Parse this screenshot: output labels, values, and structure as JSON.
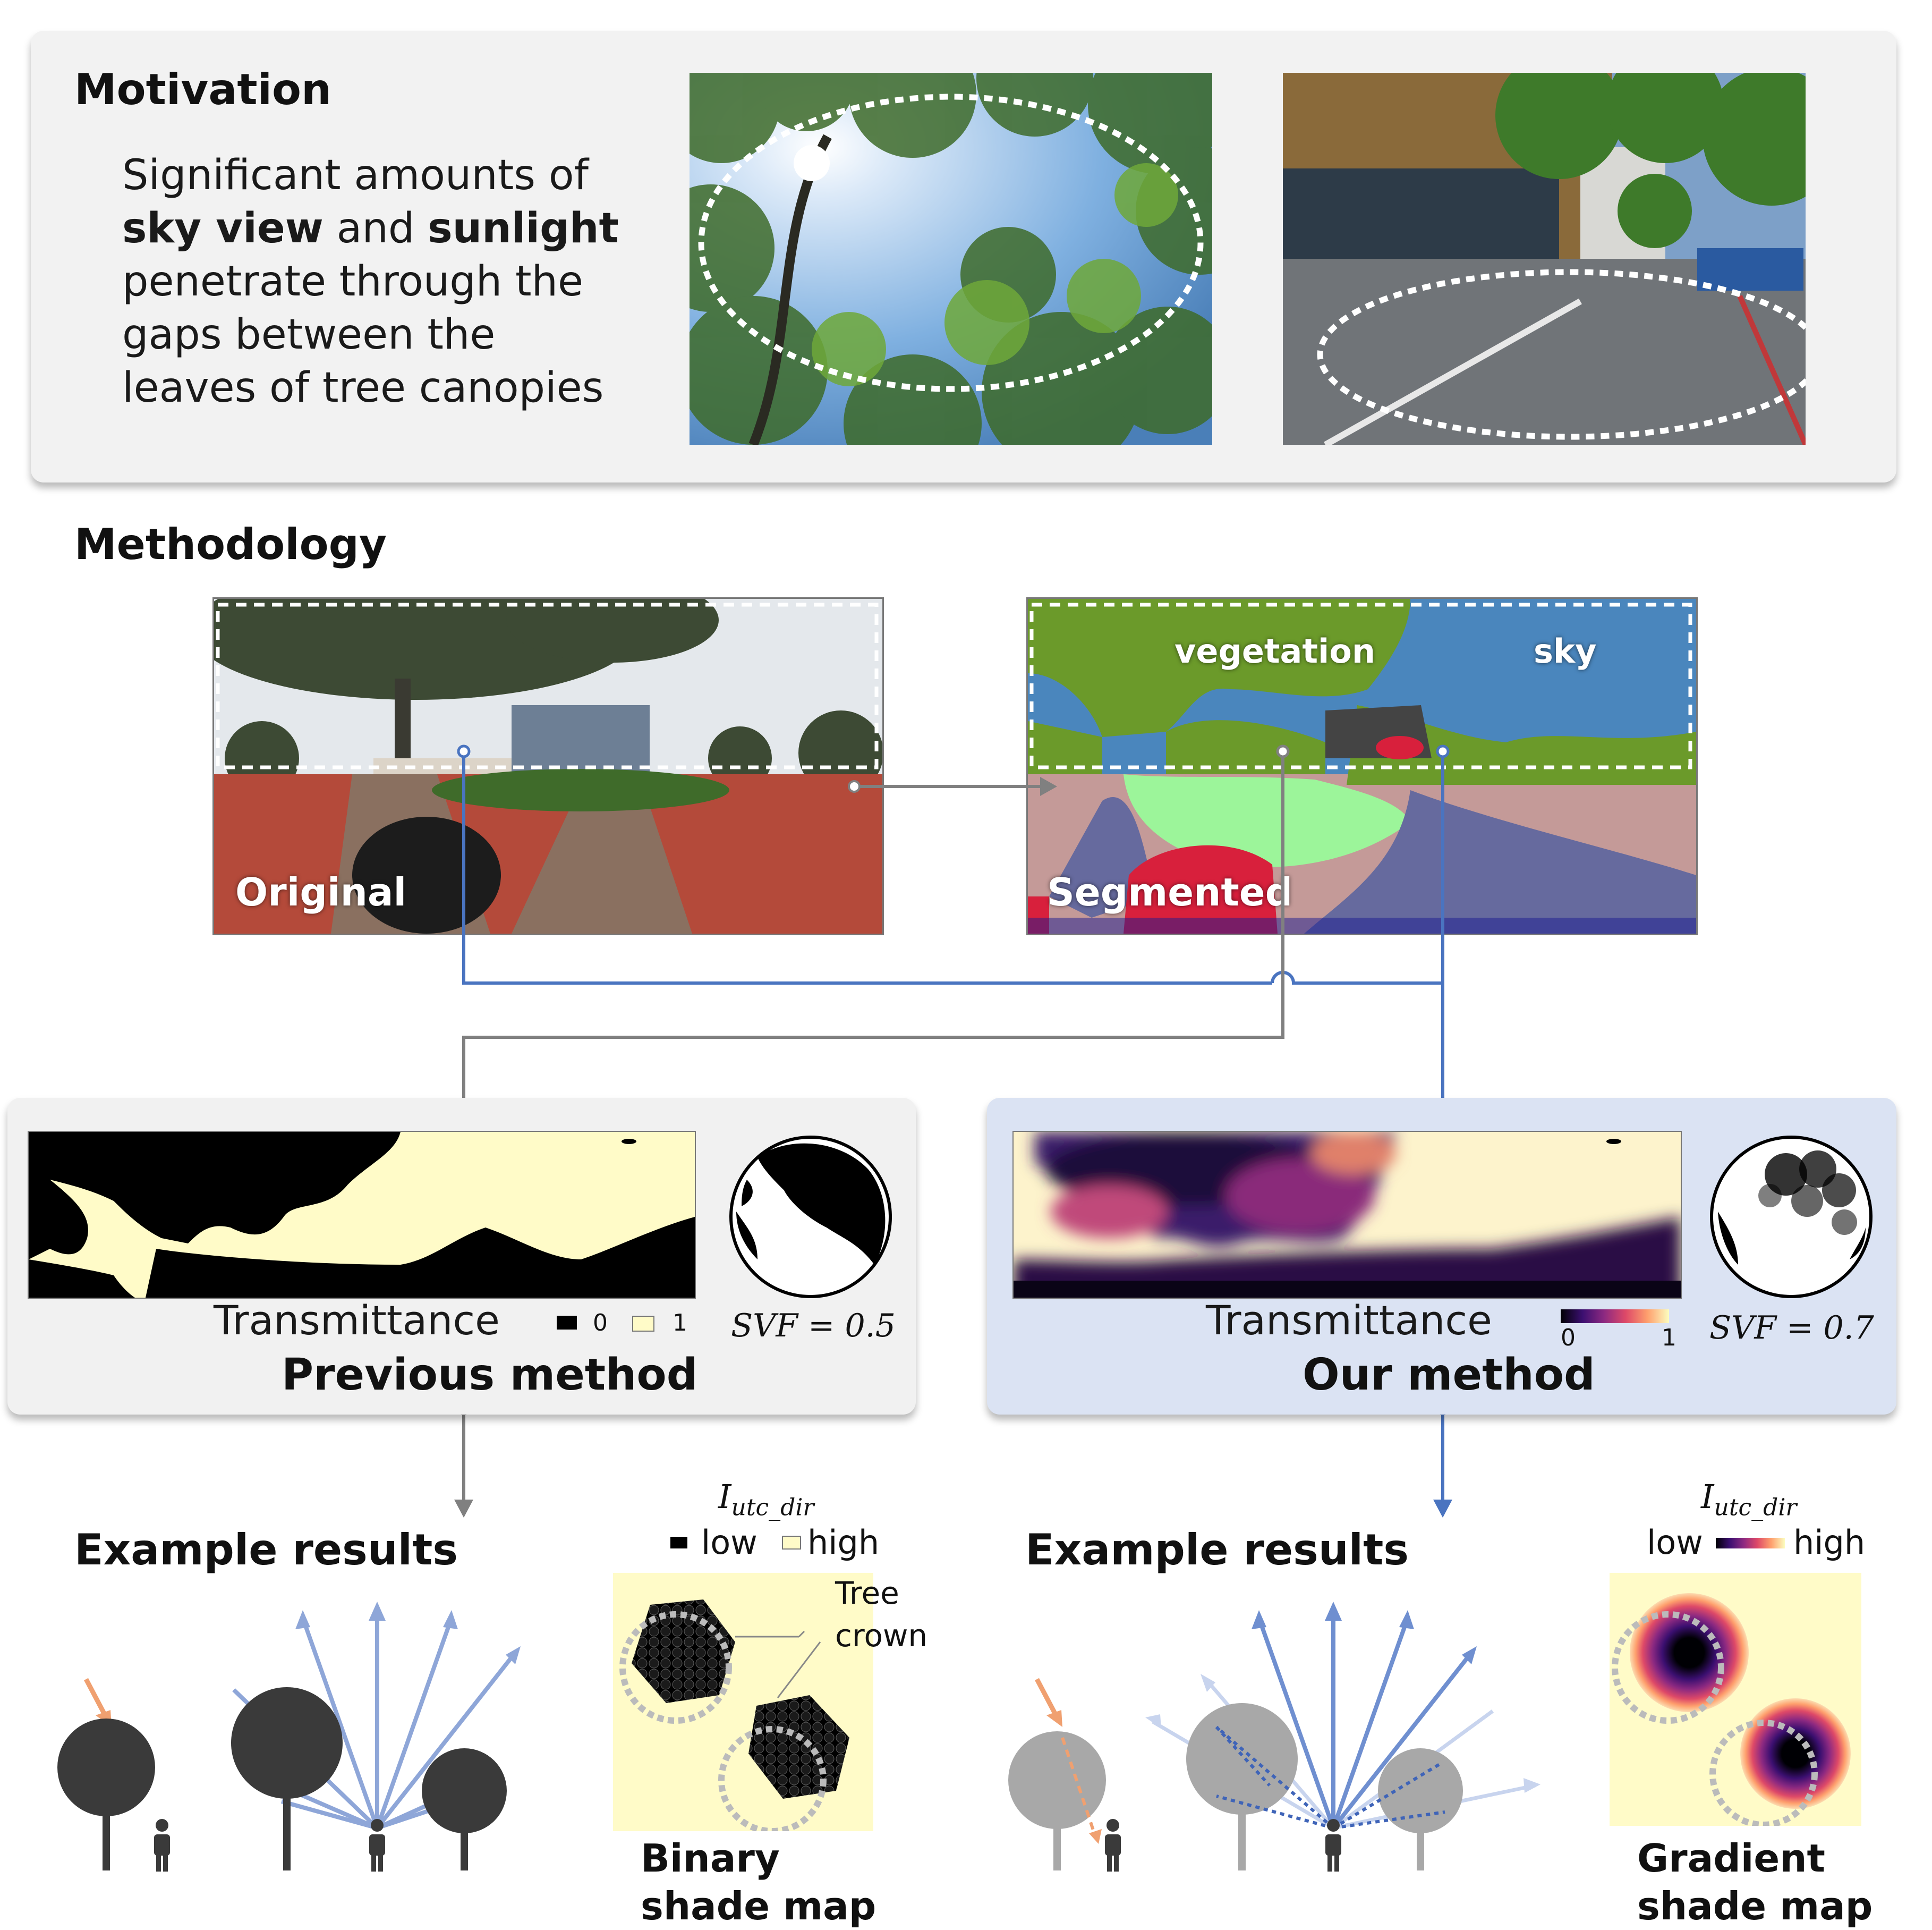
{
  "motivation": {
    "title": "Motivation",
    "text_segments": [
      "Significant amounts of",
      "sky view",
      "and",
      "sunlight",
      "penetrate through the",
      "gaps between the",
      "leaves of tree canopies"
    ]
  },
  "methodology": {
    "title": "Methodology",
    "original_label": "Original",
    "segmented_label": "Segmented",
    "vegetation_label": "vegetation",
    "sky_label": "sky"
  },
  "previous": {
    "transmittance_label": "Transmittance",
    "legend_zero": "0",
    "legend_one": "1",
    "svf": "SVF = 0.5",
    "title": "Previous method"
  },
  "ours": {
    "transmittance_label": "Transmittance",
    "legend_zero": "0",
    "legend_one": "1",
    "svf": "SVF = 0.7",
    "title": "Our method"
  },
  "results_left": {
    "title": "Example results",
    "utc_label": "I",
    "utc_sub": "utc_dir",
    "low": "low",
    "high": "high",
    "tree_crown": "Tree",
    "tree_crown2": "crown",
    "map_caption_1": "Binary",
    "map_caption_2": "shade map"
  },
  "results_right": {
    "title": "Example results",
    "utc_label": "I",
    "utc_sub": "utc_dir",
    "low": "low",
    "high": "high",
    "map_caption_1": "Gradient",
    "map_caption_2": "shade map"
  },
  "colors": {
    "panel_grey": "#f1f1f1",
    "panel_blue": "#dbe3f3",
    "arrow_blue": "#4a74c0",
    "arrow_grey": "#808080",
    "ray_blue": "#8ea6d8",
    "sun_orange": "#f0a070",
    "tree_dark": "#3a3a3a",
    "tree_light": "#a8a8a8",
    "cream": "#fffbc8",
    "veg_green": "#6b9a2a",
    "sky_blue": "#4a86bd"
  }
}
